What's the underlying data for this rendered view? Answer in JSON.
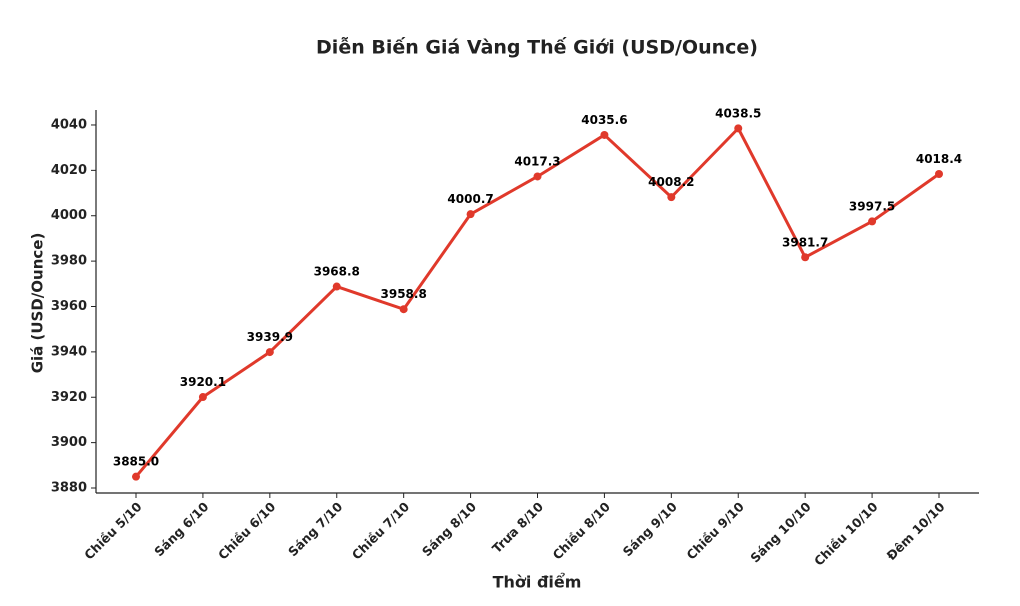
{
  "chart_data": {
    "type": "line",
    "title": "Diễn Biến Giá Vàng Thế Giới (USD/Ounce)",
    "x_label": "Thời điểm",
    "y_label": "Giá (USD/Ounce)",
    "categories": [
      "Chiều 5/10",
      "Sáng 6/10",
      "Chiều 6/10",
      "Sáng 7/10",
      "Chiều 7/10",
      "Sáng 8/10",
      "Trưa 8/10",
      "Chiều 8/10",
      "Sáng 9/10",
      "Chiều 9/10",
      "Sáng 10/10",
      "Chiều 10/10",
      "Đêm 10/10"
    ],
    "values": [
      3885.0,
      3920.1,
      3939.9,
      3968.8,
      3958.8,
      4000.7,
      4017.3,
      4035.6,
      4008.2,
      4038.5,
      3981.7,
      3997.5,
      4018.4
    ],
    "value_labels": [
      "3885.0",
      "3920.1",
      "3939.9",
      "3968.8",
      "3958.8",
      "4000.7",
      "4017.3",
      "4035.6",
      "4008.2",
      "4038.5",
      "3981.7",
      "3997.5",
      "4018.4"
    ],
    "color": "#e0392b",
    "ylim": [
      3877.8,
      4046.6
    ],
    "yticks": [
      3880,
      3900,
      3920,
      3940,
      3960,
      3980,
      4000,
      4020,
      4040
    ],
    "grid": false
  }
}
